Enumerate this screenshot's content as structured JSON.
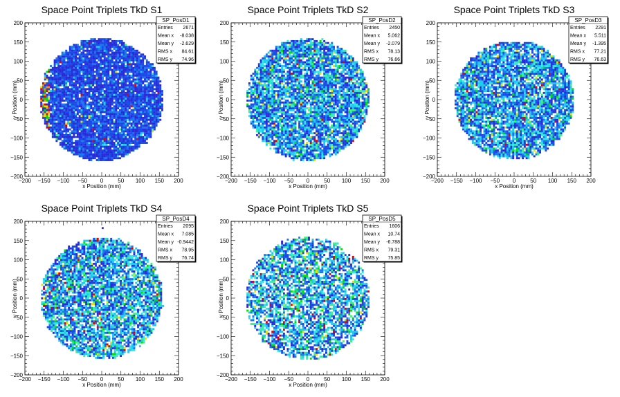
{
  "chart_data": [
    {
      "type": "heatmap",
      "title": "Space Point Triplets TkD S1",
      "xlabel": "x Position (mm)",
      "ylabel": "y Position (mm)",
      "xlim": [
        -200,
        200
      ],
      "ylim": [
        -200,
        200
      ],
      "xticks": [
        "−200",
        "−150",
        "−100",
        "−50",
        "0",
        "50",
        "100",
        "150",
        "200"
      ],
      "yticks": [
        "−200",
        "−150",
        "−100",
        "−50",
        "0",
        "50",
        "100",
        "150",
        "200"
      ],
      "bin_width": 5,
      "region": {
        "center": [
          0,
          0
        ],
        "radius": 160,
        "y_top": 160
      },
      "density": "mostly blue, red/green/yellow bins along left edge",
      "stats": {
        "name": "SP_PosD1",
        "rows": [
          {
            "label": "Entries",
            "value": "2671"
          },
          {
            "label": "Mean x",
            "value": "-8.038"
          },
          {
            "label": "Mean y",
            "value": "-2.629"
          },
          {
            "label": "RMS x",
            "value": "84.61"
          },
          {
            "label": "RMS y",
            "value": "74.96"
          }
        ]
      }
    },
    {
      "type": "heatmap",
      "title": "Space Point Triplets TkD S2",
      "xlabel": "x Position (mm)",
      "ylabel": "y Position (mm)",
      "xlim": [
        -200,
        200
      ],
      "ylim": [
        -200,
        200
      ],
      "xticks": [
        "−200",
        "−150",
        "−100",
        "−50",
        "0",
        "50",
        "100",
        "150",
        "200"
      ],
      "yticks": [
        "−200",
        "−150",
        "−100",
        "−50",
        "0",
        "50",
        "100",
        "150",
        "200"
      ],
      "bin_width": 5,
      "region": {
        "center": [
          0,
          0
        ],
        "radius": 160,
        "y_top": 160
      },
      "density": "blue and cyan mixture with scattered green, yellow and red bins",
      "stats": {
        "name": "SP_PosD2",
        "rows": [
          {
            "label": "Entries",
            "value": "2450"
          },
          {
            "label": "Mean x",
            "value": "5.062"
          },
          {
            "label": "Mean y",
            "value": "-2.079"
          },
          {
            "label": "RMS x",
            "value": "78.13"
          },
          {
            "label": "RMS y",
            "value": "76.66"
          }
        ]
      }
    },
    {
      "type": "heatmap",
      "title": "Space Point Triplets TkD S3",
      "xlabel": "x Position (mm)",
      "ylabel": "y Position (mm)",
      "xlim": [
        -200,
        200
      ],
      "ylim": [
        -200,
        200
      ],
      "xticks": [
        "−200",
        "−150",
        "−100",
        "−50",
        "0",
        "50",
        "100",
        "150",
        "200"
      ],
      "yticks": [
        "−200",
        "−150",
        "−100",
        "−50",
        "0",
        "50",
        "100",
        "150",
        "200"
      ],
      "bin_width": 5,
      "region": {
        "center": [
          0,
          0
        ],
        "radius": 155,
        "y_top": 150
      },
      "density": "blue and cyan mixture with scattered green, yellow and red bins",
      "stats": {
        "name": "SP_PosD3",
        "rows": [
          {
            "label": "Entries",
            "value": "2291"
          },
          {
            "label": "Mean x",
            "value": "5.511"
          },
          {
            "label": "Mean y",
            "value": "-1.395"
          },
          {
            "label": "RMS x",
            "value": "77.21"
          },
          {
            "label": "RMS y",
            "value": "76.63"
          }
        ]
      }
    },
    {
      "type": "heatmap",
      "title": "Space Point Triplets TkD S4",
      "xlabel": "x Position (mm)",
      "ylabel": "y Position (mm)",
      "xlim": [
        -200,
        200
      ],
      "ylim": [
        -200,
        200
      ],
      "xticks": [
        "−200",
        "−150",
        "−100",
        "−50",
        "0",
        "50",
        "100",
        "150",
        "200"
      ],
      "yticks": [
        "−200",
        "−150",
        "−100",
        "−50",
        "0",
        "50",
        "100",
        "150",
        "200"
      ],
      "bin_width": 5,
      "region": {
        "center": [
          0,
          0
        ],
        "radius": 158,
        "y_top": 180
      },
      "density": "sparser; blue, cyan and green with a few yellow and red bins",
      "stats": {
        "name": "SP_PosD4",
        "rows": [
          {
            "label": "Entries",
            "value": "2095"
          },
          {
            "label": "Mean x",
            "value": "7.085"
          },
          {
            "label": "Mean y",
            "value": "-0.9442"
          },
          {
            "label": "RMS x",
            "value": "78.95"
          },
          {
            "label": "RMS y",
            "value": "76.74"
          }
        ]
      }
    },
    {
      "type": "heatmap",
      "title": "Space Point Triplets TkD S5",
      "xlabel": "x Position (mm)",
      "ylabel": "y Position (mm)",
      "xlim": [
        -200,
        200
      ],
      "ylim": [
        -200,
        200
      ],
      "xticks": [
        "−200",
        "−150",
        "−100",
        "−50",
        "0",
        "50",
        "100",
        "150",
        "200"
      ],
      "yticks": [
        "−200",
        "−150",
        "−100",
        "−50",
        "0",
        "50",
        "100",
        "150",
        "200"
      ],
      "bin_width": 5,
      "region": {
        "center": [
          0,
          0
        ],
        "radius": 160,
        "y_top": 160
      },
      "density": "sparsest; many empty bins, blue, cyan, green with a few red bins",
      "stats": {
        "name": "SP_PosD5",
        "rows": [
          {
            "label": "Entries",
            "value": "1606"
          },
          {
            "label": "Mean x",
            "value": "10.74"
          },
          {
            "label": "Mean y",
            "value": "-6.788"
          },
          {
            "label": "RMS x",
            "value": "79.31"
          },
          {
            "label": "RMS y",
            "value": "75.85"
          }
        ]
      }
    }
  ],
  "palette": [
    "#2a2ad8",
    "#1a4ae8",
    "#1a78ec",
    "#20c8f0",
    "#30e8e0",
    "#40f080",
    "#00e000",
    "#e8e000",
    "#ff9000",
    "#e00000"
  ]
}
